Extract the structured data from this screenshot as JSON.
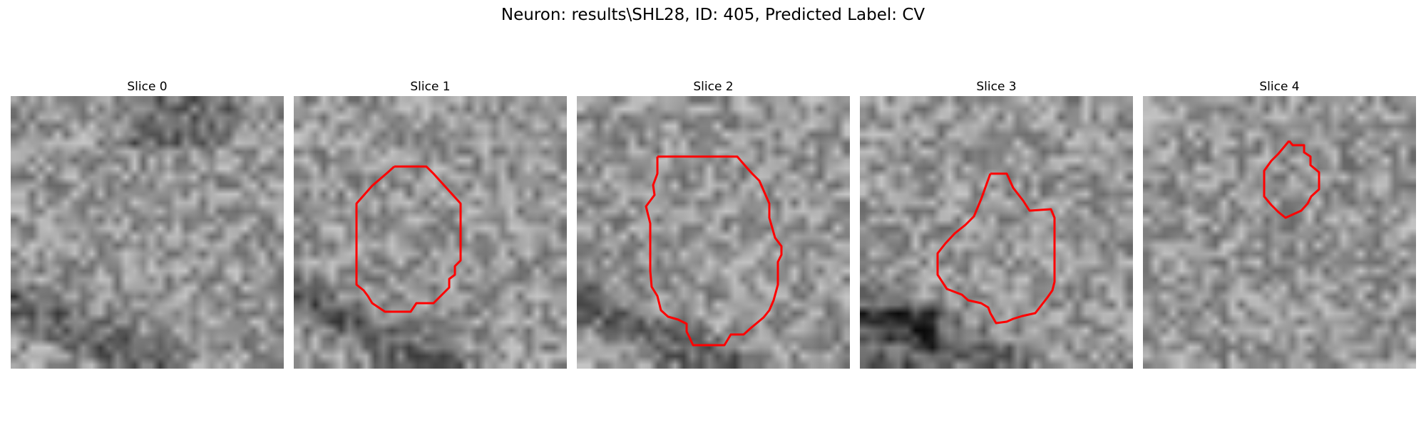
{
  "figure": {
    "title": "Neuron: results\\SHL28, ID: 405, Predicted Label: CV",
    "colors": {
      "contour": "#ff0000",
      "background": "#ffffff"
    },
    "panels": [
      {
        "title": "Slice 0",
        "has_contour": false
      },
      {
        "title": "Slice 1",
        "has_contour": true
      },
      {
        "title": "Slice 2",
        "has_contour": true
      },
      {
        "title": "Slice 3",
        "has_contour": true
      },
      {
        "title": "Slice 4",
        "has_contour": true
      }
    ]
  }
}
